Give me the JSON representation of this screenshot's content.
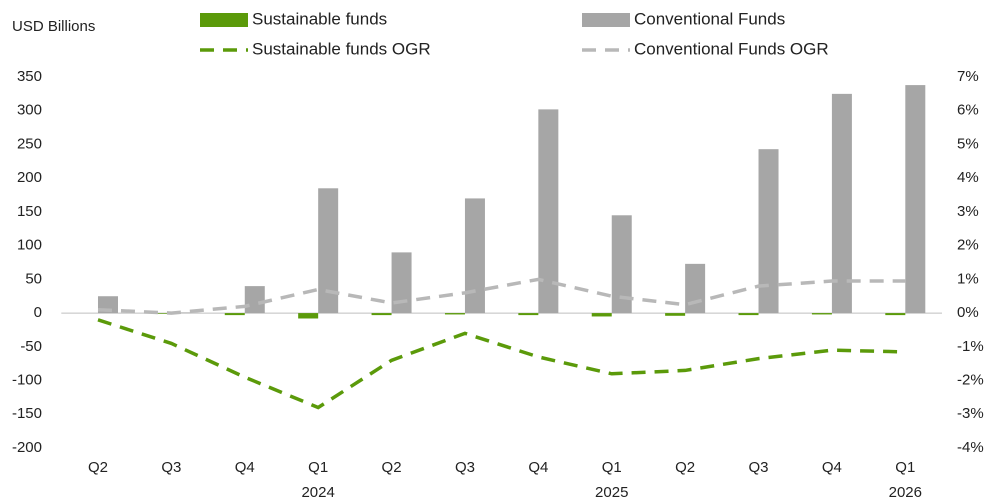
{
  "chart_data": {
    "type": "bar",
    "y_axis_label": "USD Billions",
    "categories": [
      "Q2",
      "Q3",
      "Q4",
      "Q1",
      "Q2",
      "Q3",
      "Q4",
      "Q1",
      "Q2",
      "Q3",
      "Q4",
      "Q1"
    ],
    "x_group_labels": [
      null,
      null,
      null,
      "2024",
      null,
      null,
      null,
      "2025",
      null,
      null,
      null,
      "2026"
    ],
    "series": [
      {
        "name": "Sustainable funds",
        "type": "bar",
        "color": "#5b9a0a",
        "values": [
          0,
          -1,
          -3,
          -8,
          -3,
          -2,
          -3,
          -5,
          -4,
          -3,
          -2,
          -3
        ]
      },
      {
        "name": "Conventional Funds",
        "type": "bar",
        "color": "#a6a6a6",
        "values": [
          25,
          1,
          40,
          185,
          90,
          170,
          302,
          145,
          73,
          243,
          325,
          338
        ]
      },
      {
        "name": "Sustainable funds OGR",
        "type": "line",
        "axis": "y2",
        "color": "#5b9a0a",
        "values": [
          -0.2,
          -0.9,
          -1.9,
          -2.8,
          -1.4,
          -0.6,
          -1.3,
          -1.8,
          -1.7,
          -1.35,
          -1.1,
          -1.15
        ]
      },
      {
        "name": "Conventional Funds OGR",
        "type": "line",
        "axis": "y2",
        "color": "#b8b8b8",
        "values": [
          0.1,
          0.0,
          0.2,
          0.7,
          0.3,
          0.6,
          1.0,
          0.5,
          0.25,
          0.8,
          0.95,
          0.95
        ]
      }
    ],
    "ylim": [
      -200,
      350
    ],
    "yticks": [
      -200,
      -150,
      -100,
      -50,
      0,
      50,
      100,
      150,
      200,
      250,
      300,
      350
    ],
    "y2lim": [
      -4,
      7
    ],
    "y2ticks": [
      {
        "value": -4,
        "label": "-4%"
      },
      {
        "value": -3,
        "label": "-3%"
      },
      {
        "value": -2,
        "label": "-2%"
      },
      {
        "value": -1,
        "label": "-1%"
      },
      {
        "value": 0,
        "label": "0%"
      },
      {
        "value": 1,
        "label": "1%"
      },
      {
        "value": 2,
        "label": "2%"
      },
      {
        "value": 3,
        "label": "3%"
      },
      {
        "value": 4,
        "label": "4%"
      },
      {
        "value": 5,
        "label": "5%"
      },
      {
        "value": 6,
        "label": "6%"
      },
      {
        "value": 7,
        "label": "7%"
      }
    ],
    "legend": "top"
  }
}
